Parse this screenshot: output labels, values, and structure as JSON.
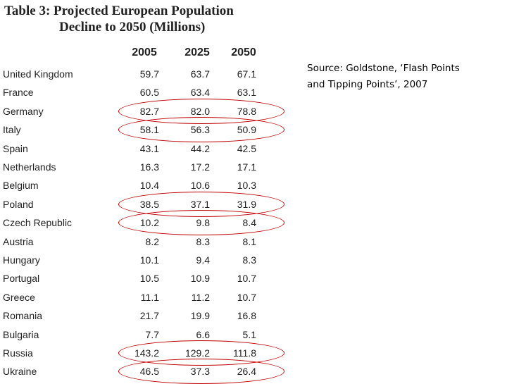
{
  "title": {
    "line1": "Table 3:  Projected European Population",
    "line2": "Decline to 2050  (Millions)"
  },
  "columns": [
    "2005",
    "2025",
    "2050"
  ],
  "rows": [
    {
      "country": "United Kingdom",
      "values": [
        "59.7",
        "63.7",
        "67.1"
      ],
      "highlighted": false
    },
    {
      "country": "France",
      "values": [
        "60.5",
        "63.4",
        "63.1"
      ],
      "highlighted": false
    },
    {
      "country": "Germany",
      "values": [
        "82.7",
        "82.0",
        "78.8"
      ],
      "highlighted": true
    },
    {
      "country": "Italy",
      "values": [
        "58.1",
        "56.3",
        "50.9"
      ],
      "highlighted": true
    },
    {
      "country": "Spain",
      "values": [
        "43.1",
        "44.2",
        "42.5"
      ],
      "highlighted": false
    },
    {
      "country": "Netherlands",
      "values": [
        "16.3",
        "17.2",
        "17.1"
      ],
      "highlighted": false
    },
    {
      "country": "Belgium",
      "values": [
        "10.4",
        "10.6",
        "10.3"
      ],
      "highlighted": false
    },
    {
      "country": "Poland",
      "values": [
        "38.5",
        "37.1",
        "31.9"
      ],
      "highlighted": true
    },
    {
      "country": "Czech Republic",
      "values": [
        "10.2",
        "9.8",
        "8.4"
      ],
      "highlighted": true
    },
    {
      "country": "Austria",
      "values": [
        "8.2",
        "8.3",
        "8.1"
      ],
      "highlighted": false
    },
    {
      "country": "Hungary",
      "values": [
        "10.1",
        "9.4",
        "8.3"
      ],
      "highlighted": false
    },
    {
      "country": "Portugal",
      "values": [
        "10.5",
        "10.9",
        "10.7"
      ],
      "highlighted": false
    },
    {
      "country": "Greece",
      "values": [
        "11.1",
        "11.2",
        "10.7"
      ],
      "highlighted": false
    },
    {
      "country": "Romania",
      "values": [
        "21.7",
        "19.9",
        "16.8"
      ],
      "highlighted": false
    },
    {
      "country": "Bulgaria",
      "values": [
        "7.7",
        "6.6",
        "5.1"
      ],
      "highlighted": false
    },
    {
      "country": "Russia",
      "values": [
        "143.2",
        "129.2",
        "111.8"
      ],
      "highlighted": true
    },
    {
      "country": "Ukraine",
      "values": [
        "46.5",
        "37.3",
        "26.4"
      ],
      "highlighted": true
    }
  ],
  "source": {
    "line1": "Source: Goldstone, ‘Flash Points",
    "line2": "and Tipping Points’, 2007"
  },
  "colors": {
    "highlight": "#c00000",
    "text": "#222222"
  }
}
